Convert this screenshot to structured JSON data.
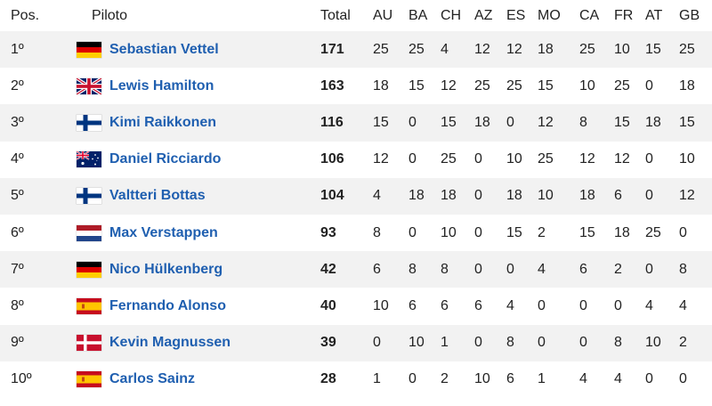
{
  "headers": {
    "pos": "Pos.",
    "pilot": "Piloto",
    "total": "Total",
    "races": [
      "AU",
      "BA",
      "CH",
      "AZ",
      "ES",
      "MO",
      "CA",
      "FR",
      "AT",
      "GB"
    ]
  },
  "rows": [
    {
      "pos": "1º",
      "flag": "germany-flag-icon",
      "name": "Sebastian Vettel",
      "total": "171",
      "scores": [
        "25",
        "25",
        "4",
        "12",
        "12",
        "18",
        "25",
        "10",
        "15",
        "25"
      ]
    },
    {
      "pos": "2º",
      "flag": "uk-flag-icon",
      "name": "Lewis Hamilton",
      "total": "163",
      "scores": [
        "18",
        "15",
        "12",
        "25",
        "25",
        "15",
        "10",
        "25",
        "0",
        "18"
      ]
    },
    {
      "pos": "3º",
      "flag": "finland-flag-icon",
      "name": "Kimi Raikkonen",
      "total": "116",
      "scores": [
        "15",
        "0",
        "15",
        "18",
        "0",
        "12",
        "8",
        "15",
        "18",
        "15"
      ]
    },
    {
      "pos": "4º",
      "flag": "australia-flag-icon",
      "name": "Daniel Ricciardo",
      "total": "106",
      "scores": [
        "12",
        "0",
        "25",
        "0",
        "10",
        "25",
        "12",
        "12",
        "0",
        "10"
      ]
    },
    {
      "pos": "5º",
      "flag": "finland-flag-icon",
      "name": "Valtteri Bottas",
      "total": "104",
      "scores": [
        "4",
        "18",
        "18",
        "0",
        "18",
        "10",
        "18",
        "6",
        "0",
        "12"
      ]
    },
    {
      "pos": "6º",
      "flag": "netherlands-flag-icon",
      "name": "Max Verstappen",
      "total": "93",
      "scores": [
        "8",
        "0",
        "10",
        "0",
        "15",
        "2",
        "15",
        "18",
        "25",
        "0"
      ]
    },
    {
      "pos": "7º",
      "flag": "germany-flag-icon",
      "name": "Nico Hülkenberg",
      "total": "42",
      "scores": [
        "6",
        "8",
        "8",
        "0",
        "0",
        "4",
        "6",
        "2",
        "0",
        "8"
      ]
    },
    {
      "pos": "8º",
      "flag": "spain-flag-icon",
      "name": "Fernando Alonso",
      "total": "40",
      "scores": [
        "10",
        "6",
        "6",
        "6",
        "4",
        "0",
        "0",
        "0",
        "4",
        "4"
      ]
    },
    {
      "pos": "9º",
      "flag": "denmark-flag-icon",
      "name": "Kevin Magnussen",
      "total": "39",
      "scores": [
        "0",
        "10",
        "1",
        "0",
        "8",
        "0",
        "0",
        "8",
        "10",
        "2"
      ]
    },
    {
      "pos": "10º",
      "flag": "spain-flag-icon",
      "name": "Carlos Sainz",
      "total": "28",
      "scores": [
        "1",
        "0",
        "2",
        "10",
        "6",
        "1",
        "4",
        "4",
        "0",
        "0"
      ]
    }
  ],
  "colors": {
    "link": "#1f5fb0",
    "row_alt": "#f2f2f2"
  }
}
